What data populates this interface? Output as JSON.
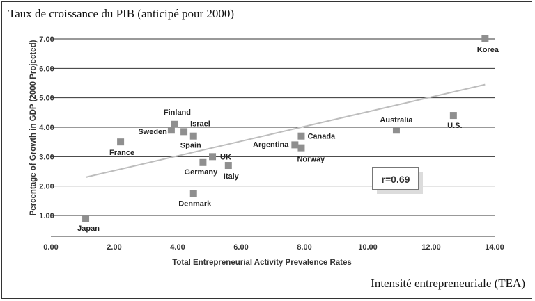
{
  "figure": {
    "title": "Taux de croissance du PIB (anticipé pour 2000)",
    "caption": "Intensité entrepreneuriale (TEA)"
  },
  "chart_data": {
    "type": "scatter",
    "xlabel": "Total Entrepreneurial Activity Prevalence Rates",
    "ylabel": "Percentage of Growth in GDP (2000 Projected)",
    "xlim": [
      0,
      14
    ],
    "ylim": [
      0.5,
      7.2
    ],
    "x_ticks": [
      "0.00",
      "2.00",
      "4.00",
      "6.00",
      "8.00",
      "10.00",
      "12.00",
      "14.00"
    ],
    "y_ticks": [
      "1.00",
      "2.00",
      "3.00",
      "4.00",
      "5.00",
      "6.00",
      "7.00"
    ],
    "y_tick_values": [
      1,
      2,
      3,
      4,
      5,
      6,
      7
    ],
    "grid": "horizontal",
    "points": [
      {
        "label": "Japan",
        "x": 1.1,
        "y": 0.9
      },
      {
        "label": "France",
        "x": 2.2,
        "y": 3.5
      },
      {
        "label": "Finland",
        "x": 3.9,
        "y": 4.1
      },
      {
        "label": "Sweden",
        "x": 3.8,
        "y": 3.9
      },
      {
        "label": "Israel",
        "x": 4.2,
        "y": 3.85
      },
      {
        "label": "Spain",
        "x": 4.5,
        "y": 3.7
      },
      {
        "label": "UK",
        "x": 5.1,
        "y": 3.0
      },
      {
        "label": "Germany",
        "x": 4.8,
        "y": 2.8
      },
      {
        "label": "Italy",
        "x": 5.6,
        "y": 2.7
      },
      {
        "label": "Denmark",
        "x": 4.5,
        "y": 1.75
      },
      {
        "label": "Argentina",
        "x": 7.7,
        "y": 3.4
      },
      {
        "label": "Canada",
        "x": 7.9,
        "y": 3.7
      },
      {
        "label": "Norway",
        "x": 7.9,
        "y": 3.3
      },
      {
        "label": "Australia",
        "x": 10.9,
        "y": 3.9
      },
      {
        "label": "U.S.",
        "x": 12.7,
        "y": 4.4
      },
      {
        "label": "Korea",
        "x": 13.7,
        "y": 7.0
      }
    ],
    "trendline": {
      "x": [
        1.1,
        13.7
      ],
      "y": [
        2.3,
        5.45
      ]
    },
    "annotation": "r=0.69",
    "colors": {
      "marker": "#8f8f8f",
      "trendline": "#bdbdbd",
      "grid": "#333333"
    }
  }
}
